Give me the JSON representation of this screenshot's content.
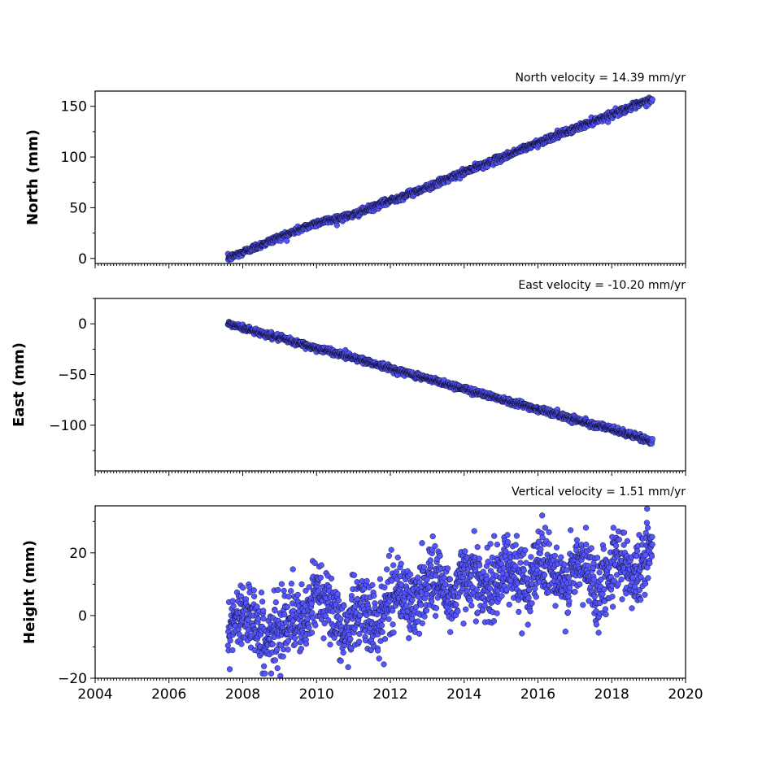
{
  "chart_data": [
    {
      "type": "scatter",
      "ylabel": "North (mm)",
      "annotation": "North velocity = 14.39 mm/yr",
      "velocity_mm_per_yr": 14.39,
      "xlim": [
        2004,
        2020
      ],
      "ylim": [
        -5,
        165
      ],
      "yticks": [
        "0",
        "50",
        "100",
        "150"
      ],
      "ytick_values": [
        0,
        50,
        100,
        150
      ],
      "x_range": [
        2007.6,
        2019.1
      ],
      "noise_mm": 1.6,
      "marker_color": "#5555ff",
      "samples": [
        {
          "x": 2007.6,
          "y": 0
        },
        {
          "x": 2008.0,
          "y": 6
        },
        {
          "x": 2009.0,
          "y": 21
        },
        {
          "x": 2010.0,
          "y": 35
        },
        {
          "x": 2011.0,
          "y": 43
        },
        {
          "x": 2012.0,
          "y": 57
        },
        {
          "x": 2013.0,
          "y": 70
        },
        {
          "x": 2014.0,
          "y": 85
        },
        {
          "x": 2015.0,
          "y": 99
        },
        {
          "x": 2016.0,
          "y": 114
        },
        {
          "x": 2017.0,
          "y": 128
        },
        {
          "x": 2018.0,
          "y": 142
        },
        {
          "x": 2019.1,
          "y": 157
        }
      ]
    },
    {
      "type": "scatter",
      "ylabel": "East (mm)",
      "annotation": "East velocity = -10.20 mm/yr",
      "velocity_mm_per_yr": -10.2,
      "xlim": [
        2004,
        2020
      ],
      "ylim": [
        -145,
        25
      ],
      "yticks": [
        "0",
        "−50",
        "−100"
      ],
      "ytick_values": [
        0,
        -50,
        -100
      ],
      "x_range": [
        2007.6,
        2019.1
      ],
      "noise_mm": 1.5,
      "marker_color": "#5555ff",
      "samples": [
        {
          "x": 2007.6,
          "y": 0
        },
        {
          "x": 2009.0,
          "y": -14
        },
        {
          "x": 2010.0,
          "y": -24
        },
        {
          "x": 2011.0,
          "y": -33
        },
        {
          "x": 2012.0,
          "y": -44
        },
        {
          "x": 2013.0,
          "y": -54
        },
        {
          "x": 2014.0,
          "y": -64
        },
        {
          "x": 2015.0,
          "y": -74
        },
        {
          "x": 2016.0,
          "y": -84
        },
        {
          "x": 2017.0,
          "y": -94
        },
        {
          "x": 2018.0,
          "y": -104
        },
        {
          "x": 2019.1,
          "y": -116
        }
      ]
    },
    {
      "type": "scatter",
      "ylabel": "Height (mm)",
      "annotation": "Vertical velocity = 1.51 mm/yr",
      "velocity_mm_per_yr": 1.51,
      "xlim": [
        2004,
        2020
      ],
      "ylim": [
        -20,
        35
      ],
      "yticks": [
        "20",
        "0",
        "−20"
      ],
      "ytick_values": [
        20,
        0,
        -20
      ],
      "xticks": [
        "2004",
        "2006",
        "2008",
        "2010",
        "2012",
        "2014",
        "2016",
        "2018",
        "2020"
      ],
      "xtick_values": [
        2004,
        2006,
        2008,
        2010,
        2012,
        2014,
        2016,
        2018,
        2020
      ],
      "x_range": [
        2007.6,
        2019.1
      ],
      "noise_mm": 5.5,
      "seasonal_amplitude_mm": 4,
      "marker_color": "#5555ff",
      "samples": [
        {
          "x": 2007.6,
          "y": 0
        },
        {
          "x": 2009.0,
          "y": -6
        },
        {
          "x": 2010.0,
          "y": 5
        },
        {
          "x": 2011.0,
          "y": -3
        },
        {
          "x": 2012.0,
          "y": 4
        },
        {
          "x": 2013.0,
          "y": 9
        },
        {
          "x": 2014.0,
          "y": 10
        },
        {
          "x": 2015.0,
          "y": 12
        },
        {
          "x": 2016.0,
          "y": 15
        },
        {
          "x": 2017.0,
          "y": 12
        },
        {
          "x": 2018.0,
          "y": 14
        },
        {
          "x": 2019.1,
          "y": 19
        }
      ]
    }
  ]
}
